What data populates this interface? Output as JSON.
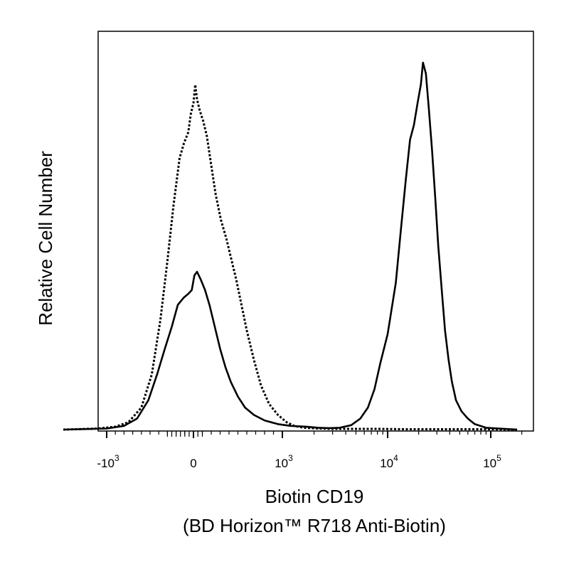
{
  "chart_data": {
    "type": "line",
    "title": "",
    "xlabel": "Biotin CD19",
    "xlabel_sub": "(BD Horizon™ R718 Anti-Biotin)",
    "ylabel": "Relative Cell Number",
    "x_scale": "biexponential",
    "xlim": [
      -1500,
      180000
    ],
    "ylim": [
      0,
      100
    ],
    "grid": false,
    "legend": "none",
    "x_ticks": [
      {
        "value": -1000,
        "base": "-10",
        "exp": "3"
      },
      {
        "value": 0,
        "base": "0",
        "exp": ""
      },
      {
        "value": 1000,
        "base": "10",
        "exp": "3"
      },
      {
        "value": 10000,
        "base": "10",
        "exp": "4"
      },
      {
        "value": 100000,
        "base": "10",
        "exp": "5"
      }
    ],
    "series": [
      {
        "style": "dotted",
        "color": "#000000",
        "points": [
          [
            -1500,
            0
          ],
          [
            -1100,
            0.3
          ],
          [
            -900,
            0.8
          ],
          [
            -750,
            2
          ],
          [
            -600,
            6
          ],
          [
            -480,
            15
          ],
          [
            -380,
            30
          ],
          [
            -300,
            46
          ],
          [
            -230,
            61
          ],
          [
            -160,
            74
          ],
          [
            -110,
            78
          ],
          [
            -60,
            81
          ],
          [
            -30,
            86
          ],
          [
            0,
            89
          ],
          [
            20,
            94
          ],
          [
            40,
            90
          ],
          [
            70,
            87
          ],
          [
            110,
            84
          ],
          [
            150,
            80
          ],
          [
            200,
            72
          ],
          [
            250,
            64
          ],
          [
            310,
            57
          ],
          [
            370,
            52
          ],
          [
            420,
            47
          ],
          [
            480,
            41
          ],
          [
            540,
            34
          ],
          [
            600,
            27
          ],
          [
            680,
            19
          ],
          [
            760,
            12
          ],
          [
            850,
            7
          ],
          [
            950,
            4
          ],
          [
            1100,
            2
          ],
          [
            1300,
            1
          ],
          [
            1600,
            0.5
          ],
          [
            2200,
            0.3
          ],
          [
            3000,
            0.2
          ],
          [
            5000,
            0.2
          ],
          [
            8000,
            0.2
          ],
          [
            15000,
            0.1
          ],
          [
            40000,
            0.1
          ],
          [
            100000,
            0.1
          ],
          [
            180000,
            0
          ]
        ]
      },
      {
        "style": "solid",
        "color": "#000000",
        "points": [
          [
            -1500,
            0
          ],
          [
            -1000,
            0.3
          ],
          [
            -800,
            1
          ],
          [
            -650,
            3
          ],
          [
            -520,
            8
          ],
          [
            -420,
            15
          ],
          [
            -330,
            22
          ],
          [
            -250,
            28
          ],
          [
            -180,
            34
          ],
          [
            -110,
            36
          ],
          [
            -60,
            37
          ],
          [
            -20,
            38
          ],
          [
            10,
            42
          ],
          [
            40,
            43
          ],
          [
            80,
            41
          ],
          [
            130,
            38
          ],
          [
            180,
            34
          ],
          [
            240,
            28
          ],
          [
            300,
            22
          ],
          [
            360,
            17
          ],
          [
            420,
            13
          ],
          [
            500,
            9
          ],
          [
            580,
            6
          ],
          [
            680,
            4
          ],
          [
            800,
            2.5
          ],
          [
            950,
            1.5
          ],
          [
            1200,
            1
          ],
          [
            1700,
            0.8
          ],
          [
            2200,
            0.5
          ],
          [
            2800,
            0.4
          ],
          [
            3500,
            0.5
          ],
          [
            4500,
            1.2
          ],
          [
            5500,
            3
          ],
          [
            6500,
            6
          ],
          [
            7500,
            11
          ],
          [
            8500,
            18
          ],
          [
            10000,
            26
          ],
          [
            12000,
            40
          ],
          [
            13500,
            55
          ],
          [
            15000,
            68
          ],
          [
            16500,
            79
          ],
          [
            18000,
            83
          ],
          [
            19500,
            89
          ],
          [
            21000,
            94
          ],
          [
            22000,
            100
          ],
          [
            23500,
            97
          ],
          [
            25000,
            88
          ],
          [
            27000,
            76
          ],
          [
            29000,
            63
          ],
          [
            31000,
            50
          ],
          [
            33500,
            38
          ],
          [
            36000,
            27
          ],
          [
            39000,
            19
          ],
          [
            42000,
            13
          ],
          [
            46000,
            8
          ],
          [
            52000,
            5
          ],
          [
            60000,
            3
          ],
          [
            70000,
            1.5
          ],
          [
            90000,
            0.5
          ],
          [
            180000,
            0
          ]
        ]
      }
    ]
  }
}
